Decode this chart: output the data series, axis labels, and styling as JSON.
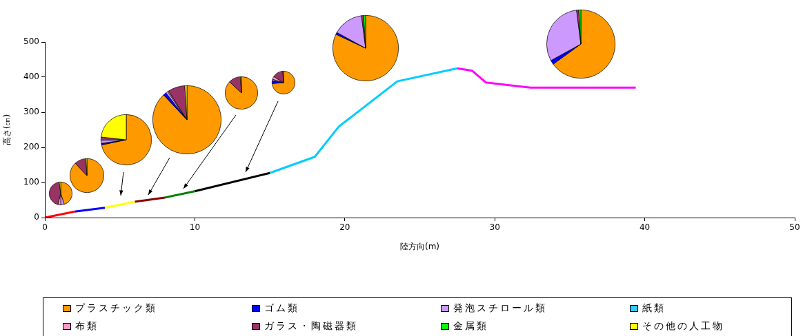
{
  "chart_data": [
    {
      "type": "line",
      "xlabel": "陸方向(m)",
      "ylabel": "高さ(㎝)",
      "xlim": [
        0,
        50
      ],
      "xticks": [
        0,
        10,
        20,
        30,
        40,
        50
      ],
      "ylim": [
        0,
        500
      ],
      "yticks": [
        0,
        100,
        200,
        300,
        400,
        500
      ],
      "grid": false,
      "legend": false,
      "marker": "none",
      "line_style": "solid",
      "series": [
        {
          "color": "#ff0000",
          "x": [
            0,
            2
          ],
          "values": [
            0,
            17
          ]
        },
        {
          "color": "#0000ff",
          "x": [
            2,
            4
          ],
          "values": [
            17,
            28
          ]
        },
        {
          "color": "#ffff00",
          "x": [
            4,
            6
          ],
          "values": [
            28,
            45
          ]
        },
        {
          "color": "#800000",
          "x": [
            6,
            8
          ],
          "values": [
            45,
            57
          ]
        },
        {
          "color": "#008000",
          "x": [
            8,
            10
          ],
          "values": [
            57,
            75
          ]
        },
        {
          "color": "#000000",
          "x": [
            10,
            15
          ],
          "values": [
            75,
            127
          ]
        },
        {
          "color": "#00ccff",
          "x": [
            15,
            18,
            19.6,
            23.5,
            27.5
          ],
          "values": [
            127,
            173,
            259,
            388,
            425
          ]
        },
        {
          "color": "#ff00ff",
          "x": [
            27.5,
            28.5,
            29.4,
            32.4,
            39.4
          ],
          "values": [
            425,
            418,
            385,
            370,
            370
          ]
        }
      ]
    },
    {
      "type": "pie",
      "legend": "bottom",
      "categories": [
        "プラスチック類",
        "ゴム類",
        "発泡スチロール類",
        "紙類",
        "布類",
        "ガラス・陶磁器類",
        "金属類",
        "その他の人工物"
      ],
      "colors": [
        "#ff9900",
        "#0000ff",
        "#cc99ff",
        "#33ccff",
        "#ff99cc",
        "#993366",
        "#00ff00",
        "#ffff00"
      ],
      "values": [
        45,
        0,
        5,
        0,
        4,
        44,
        0,
        2
      ]
    },
    {
      "type": "pie",
      "categories": [
        null,
        null,
        null,
        null,
        null,
        null,
        null,
        null
      ],
      "colors": [
        "#ff9900",
        "#0000ff",
        "#cc99ff",
        "#33ccff",
        "#ff99cc",
        "#993366",
        "#00ff00",
        "#ffff00"
      ],
      "values": [
        88,
        0,
        0,
        0,
        0,
        11,
        0,
        1
      ]
    },
    {
      "type": "pie",
      "categories": [
        null,
        null,
        null,
        null,
        null,
        null,
        null,
        null
      ],
      "colors": [
        "#ff9900",
        "#0000ff",
        "#cc99ff",
        "#33ccff",
        "#ff99cc",
        "#993366",
        "#00ff00",
        "#ffff00"
      ],
      "values": [
        71,
        1,
        2,
        0,
        null,
        2,
        0,
        23
      ]
    },
    {
      "type": "pie",
      "categories": [
        null,
        null,
        null,
        null,
        null,
        null,
        null,
        null
      ],
      "colors": [
        "#ff9900",
        "#0000ff",
        "#cc99ff",
        "#33ccff",
        "#ff99cc",
        "#993366",
        "#00ff00",
        "#ffff00"
      ],
      "values": [
        88,
        1.5,
        1,
        0,
        0.5,
        8,
        0,
        1
      ]
    },
    {
      "type": "pie",
      "categories": [
        null,
        null,
        null,
        null,
        null,
        null,
        null,
        null
      ],
      "colors": [
        "#ff9900",
        "#0000ff",
        "#cc99ff",
        "#33ccff",
        "#ff99cc",
        "#993366",
        "#00ff00",
        "#ffff00"
      ],
      "values": [
        87,
        0,
        0,
        0,
        0,
        12,
        0,
        1
      ]
    },
    {
      "type": "pie",
      "categories": [
        null,
        null,
        null,
        null,
        null,
        null,
        null,
        null
      ],
      "colors": [
        "#ff9900",
        "#0000ff",
        "#cc99ff",
        "#33ccff",
        "#ff99cc",
        "#993366",
        "#00ff00",
        "#ffff00"
      ],
      "values": [
        73,
        4,
        2,
        0,
        4,
        15,
        null,
        1
      ]
    },
    {
      "type": "pie",
      "categories": [
        null,
        null,
        null,
        null,
        null,
        null,
        null,
        null
      ],
      "colors": [
        "#ff9900",
        "#0000ff",
        "#cc99ff",
        "#33ccff",
        "#ff99cc",
        "#993366",
        "#00ff00",
        "#ffff00"
      ],
      "values": [
        82,
        1,
        15,
        0,
        0,
        1,
        1,
        0
      ]
    },
    {
      "type": "pie",
      "categories": [
        null,
        null,
        null,
        null,
        null,
        null,
        null,
        null
      ],
      "colors": [
        "#ff9900",
        "#0000ff",
        "#cc99ff",
        "#33ccff",
        "#ff99cc",
        "#993366",
        "#00ff00",
        "#ffff00"
      ],
      "values": [
        65,
        2,
        31,
        0,
        0,
        1,
        1,
        0
      ]
    }
  ]
}
